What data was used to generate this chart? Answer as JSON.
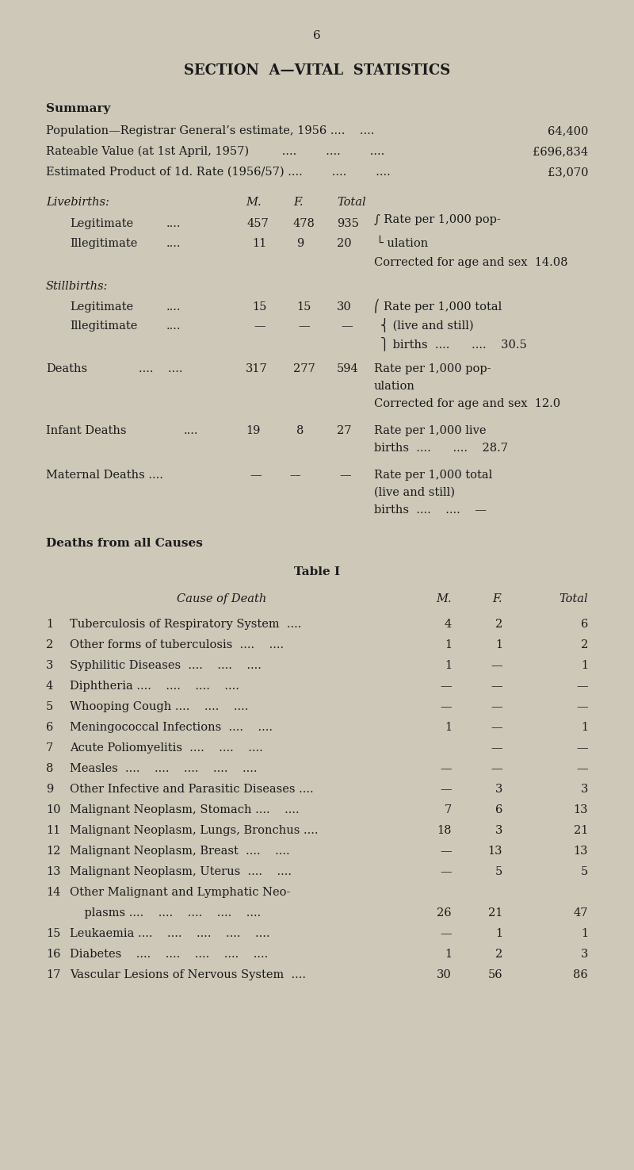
{
  "bg_color": "#cec8b8",
  "text_color": "#1a1a1a",
  "page_number": "6",
  "section_title": "SECTION  A—VITAL  STATISTICS"
}
